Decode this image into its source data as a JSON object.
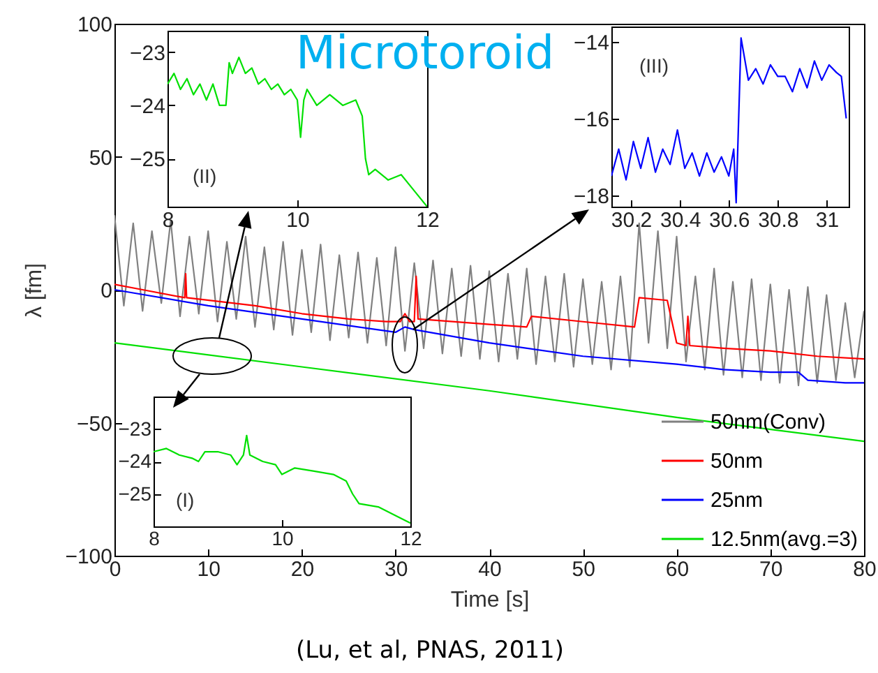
{
  "chart_data": [
    {
      "type": "line",
      "title": "Microtoroid",
      "xlabel": "Time [s]",
      "ylabel": "λ [fm]",
      "annotations": [
        "(Lu, et al, PNAS, 2011)"
      ],
      "legend": "bottom right",
      "xlim": [
        0,
        80
      ],
      "xticks": [
        0,
        10,
        20,
        30,
        40,
        50,
        60,
        70,
        80
      ],
      "ylim": [
        -100,
        100
      ],
      "yticks": [
        -100,
        -50,
        0,
        50,
        100
      ],
      "grid": false,
      "series": [
        {
          "name": "50nm(Conv)",
          "color": "#808080",
          "x": [
            0,
            1,
            2,
            3,
            4,
            5,
            6,
            7,
            8,
            9,
            10,
            11,
            12,
            13,
            14,
            15,
            16,
            17,
            18,
            19,
            20,
            21,
            22,
            23,
            24,
            25,
            26,
            27,
            28,
            29,
            30,
            31,
            32,
            33,
            34,
            35,
            36,
            37,
            38,
            39,
            40,
            41,
            42,
            43,
            44,
            45,
            46,
            47,
            48,
            49,
            50,
            51,
            52,
            53,
            54,
            55,
            56,
            57,
            58,
            59,
            60,
            61,
            62,
            63,
            64,
            65,
            66,
            67,
            68,
            69,
            70,
            71,
            72,
            73,
            74,
            75,
            76,
            77,
            78,
            79,
            80
          ],
          "values": [
            28,
            -6,
            25,
            -8,
            22,
            -5,
            26,
            -10,
            20,
            -9,
            22,
            -12,
            18,
            -11,
            20,
            -14,
            16,
            -15,
            18,
            -17,
            15,
            -16,
            17,
            -19,
            13,
            -18,
            14,
            -20,
            12,
            -21,
            16,
            -23,
            10,
            -22,
            11,
            -24,
            8,
            -25,
            9,
            -26,
            7,
            -27,
            6,
            -26,
            8,
            -28,
            5,
            -27,
            6,
            -29,
            4,
            -28,
            3,
            -30,
            5,
            -29,
            25,
            -20,
            22,
            -22,
            20,
            -27,
            5,
            -30,
            8,
            -32,
            3,
            -33,
            4,
            -34,
            2,
            -35,
            0,
            -36,
            1,
            -35,
            -2,
            -34,
            -5,
            -33,
            -8
          ]
        },
        {
          "name": "50nm",
          "color": "#ff0000",
          "x": [
            0,
            3,
            7.5,
            7.6,
            7.7,
            15,
            20,
            25,
            29,
            30.5,
            31,
            31.5,
            32,
            32.2,
            32.4,
            40,
            44,
            44.5,
            50,
            55.5,
            56,
            59,
            60,
            61,
            61.2,
            61.4,
            65,
            70,
            75,
            80
          ],
          "values": [
            2,
            0,
            -3,
            6,
            -3,
            -6,
            -9,
            -11,
            -12,
            -12,
            -9,
            -12,
            -12,
            5,
            -11,
            -13,
            -14,
            -10,
            -12,
            -14,
            -3,
            -4,
            -20,
            -21,
            -10,
            -21,
            -22,
            -23,
            -25,
            -26
          ]
        },
        {
          "name": "25nm",
          "color": "#0000ff",
          "x": [
            0,
            10,
            20,
            30,
            31,
            32,
            40,
            50,
            60,
            65,
            70,
            73,
            74,
            78,
            80
          ],
          "values": [
            0,
            -6,
            -11,
            -16,
            -14,
            -15,
            -20,
            -25,
            -28,
            -30,
            -31,
            -31,
            -34,
            -35,
            -35
          ]
        },
        {
          "name": "12.5nm(avg.=3)",
          "color": "#00e000",
          "x": [
            0,
            20,
            40,
            60,
            80
          ],
          "values": [
            -20,
            -29,
            -38,
            -48,
            -57
          ]
        }
      ]
    },
    {
      "type": "line",
      "annotations": [
        "(I)"
      ],
      "xlim": [
        8,
        12
      ],
      "xticks": [
        8,
        10,
        12
      ],
      "ylim": [
        -26,
        -22
      ],
      "yticks": [
        -23,
        -24,
        -25
      ],
      "series": [
        {
          "color": "#00e000",
          "x": [
            8,
            8.2,
            8.4,
            8.6,
            8.7,
            8.8,
            9.0,
            9.2,
            9.3,
            9.4,
            9.45,
            9.5,
            9.7,
            9.9,
            10.0,
            10.2,
            10.5,
            10.8,
            11.0,
            11.1,
            11.2,
            11.5,
            11.8,
            12
          ],
          "values": [
            -23.7,
            -23.6,
            -23.8,
            -23.9,
            -24.0,
            -23.7,
            -23.7,
            -23.8,
            -24.1,
            -23.8,
            -23.2,
            -23.8,
            -24.0,
            -24.1,
            -24.4,
            -24.2,
            -24.3,
            -24.4,
            -24.6,
            -25.0,
            -25.3,
            -25.4,
            -25.7,
            -25.9
          ]
        }
      ]
    },
    {
      "type": "line",
      "annotations": [
        "(II)"
      ],
      "xlim": [
        8,
        12
      ],
      "xticks": [
        8,
        10,
        12
      ],
      "ylim": [
        -25.9,
        -22.6
      ],
      "yticks": [
        -23,
        -24,
        -25
      ],
      "series": [
        {
          "color": "#00e000",
          "x": [
            8,
            8.1,
            8.2,
            8.3,
            8.4,
            8.5,
            8.6,
            8.7,
            8.8,
            8.9,
            8.95,
            9.0,
            9.1,
            9.2,
            9.3,
            9.4,
            9.5,
            9.6,
            9.7,
            9.8,
            9.9,
            10.0,
            10.05,
            10.1,
            10.15,
            10.3,
            10.5,
            10.7,
            10.9,
            11.0,
            11.05,
            11.1,
            11.2,
            11.4,
            11.6,
            11.8,
            12
          ],
          "values": [
            -23.6,
            -23.4,
            -23.7,
            -23.5,
            -23.8,
            -23.6,
            -23.9,
            -23.6,
            -24.0,
            -24.0,
            -23.2,
            -23.4,
            -23.1,
            -23.4,
            -23.3,
            -23.6,
            -23.5,
            -23.7,
            -23.6,
            -23.8,
            -23.7,
            -23.9,
            -24.6,
            -23.9,
            -23.7,
            -24.0,
            -23.8,
            -24.0,
            -23.9,
            -24.2,
            -25.0,
            -25.3,
            -25.2,
            -25.4,
            -25.3,
            -25.6,
            -25.9
          ]
        }
      ]
    },
    {
      "type": "line",
      "annotations": [
        "(III)"
      ],
      "xlim": [
        30.12,
        31.09
      ],
      "xticks": [
        30.2,
        30.4,
        30.6,
        30.8,
        31
      ],
      "ylim": [
        -18.3,
        -13.6
      ],
      "yticks": [
        -14,
        -16,
        -18
      ],
      "series": [
        {
          "color": "#0000ff",
          "x": [
            30.12,
            30.15,
            30.18,
            30.21,
            30.24,
            30.27,
            30.3,
            30.33,
            30.36,
            30.39,
            30.42,
            30.45,
            30.48,
            30.51,
            30.54,
            30.57,
            30.6,
            30.62,
            30.63,
            30.65,
            30.68,
            30.71,
            30.74,
            30.77,
            30.8,
            30.83,
            30.86,
            30.89,
            30.92,
            30.95,
            30.98,
            31.01,
            31.04,
            31.06,
            31.08
          ],
          "values": [
            -17.5,
            -16.8,
            -17.6,
            -16.6,
            -17.3,
            -16.5,
            -17.4,
            -16.8,
            -17.2,
            -16.3,
            -17.3,
            -16.9,
            -17.5,
            -16.9,
            -17.4,
            -17.0,
            -17.5,
            -16.8,
            -18.2,
            -13.9,
            -15.0,
            -14.7,
            -15.1,
            -14.6,
            -14.9,
            -14.9,
            -15.3,
            -14.7,
            -15.2,
            -14.5,
            -15.0,
            -14.6,
            -14.8,
            -14.9,
            -16.0
          ]
        }
      ]
    }
  ]
}
